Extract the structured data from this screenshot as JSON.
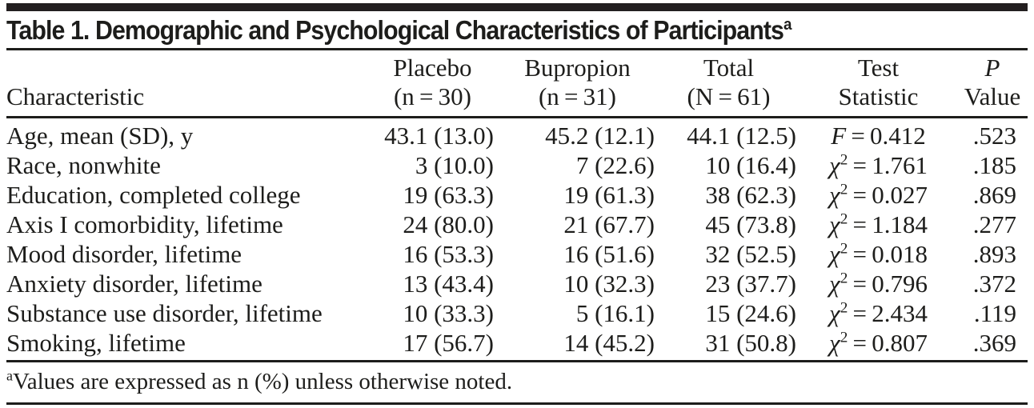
{
  "table": {
    "title": "Table 1. Demographic and Psychological Characteristics of Participants",
    "title_superscript": "a",
    "headers": [
      {
        "line1": "",
        "line2": "Characteristic",
        "italic_line1": false
      },
      {
        "line1": "Placebo",
        "line2": "(n = 30)",
        "italic_line1": false
      },
      {
        "line1": "Bupropion",
        "line2": "(n = 31)",
        "italic_line1": false
      },
      {
        "line1": "Total",
        "line2": "(N = 61)",
        "italic_line1": false
      },
      {
        "line1": "Test",
        "line2": "Statistic",
        "italic_line1": false
      },
      {
        "line1": "P",
        "line2": "Value",
        "italic_line1": true
      }
    ],
    "rows": [
      {
        "characteristic": "Age, mean (SD), y",
        "placebo": "43.1 (13.0)",
        "bupropion": "45.2 (12.1)",
        "total": "44.1 (12.5)",
        "stat_symbol": "F",
        "stat_sup": "",
        "stat_value": "0.412",
        "p_value": ".523"
      },
      {
        "characteristic": "Race, nonwhite",
        "placebo": "3 (10.0)",
        "bupropion": "7 (22.6)",
        "total": "10 (16.4)",
        "stat_symbol": "χ",
        "stat_sup": "2",
        "stat_value": "1.761",
        "p_value": ".185"
      },
      {
        "characteristic": "Education, completed college",
        "placebo": "19 (63.3)",
        "bupropion": "19 (61.3)",
        "total": "38 (62.3)",
        "stat_symbol": "χ",
        "stat_sup": "2",
        "stat_value": "0.027",
        "p_value": ".869"
      },
      {
        "characteristic": "Axis I comorbidity, lifetime",
        "placebo": "24 (80.0)",
        "bupropion": "21 (67.7)",
        "total": "45 (73.8)",
        "stat_symbol": "χ",
        "stat_sup": "2",
        "stat_value": "1.184",
        "p_value": ".277"
      },
      {
        "characteristic": "Mood disorder, lifetime",
        "placebo": "16 (53.3)",
        "bupropion": "16 (51.6)",
        "total": "32 (52.5)",
        "stat_symbol": "χ",
        "stat_sup": "2",
        "stat_value": "0.018",
        "p_value": ".893"
      },
      {
        "characteristic": "Anxiety disorder, lifetime",
        "placebo": "13 (43.4)",
        "bupropion": "10 (32.3)",
        "total": "23 (37.7)",
        "stat_symbol": "χ",
        "stat_sup": "2",
        "stat_value": "0.796",
        "p_value": ".372"
      },
      {
        "characteristic": "Substance use disorder, lifetime",
        "placebo": "10 (33.3)",
        "bupropion": "5 (16.1)",
        "total": "15 (24.6)",
        "stat_symbol": "χ",
        "stat_sup": "2",
        "stat_value": "2.434",
        "p_value": ".119"
      },
      {
        "characteristic": "Smoking, lifetime",
        "placebo": "17 (56.7)",
        "bupropion": "14 (45.2)",
        "total": "31 (50.8)",
        "stat_symbol": "χ",
        "stat_sup": "2",
        "stat_value": "0.807",
        "p_value": ".369"
      }
    ],
    "footnote_superscript": "a",
    "footnote_text": "Values are expressed as n (%) unless otherwise noted.",
    "colors": {
      "ink": "#1d1d1b",
      "top_bar": "#231f20",
      "background": "#ffffff"
    },
    "equals_separator": " = "
  }
}
